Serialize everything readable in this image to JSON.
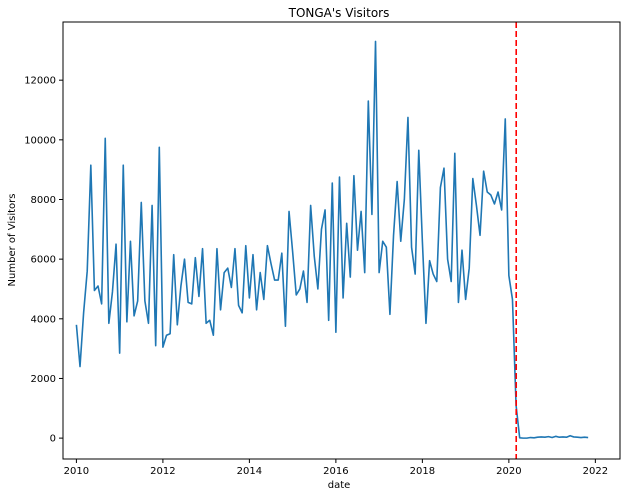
{
  "chart_data": {
    "type": "line",
    "title": "TONGA's Visitors",
    "xlabel": "date",
    "ylabel": "Number of Visitors",
    "xlim": [
      2009.69,
      2022.57
    ],
    "ylim": [
      -700,
      13950
    ],
    "x_ticks": [
      2010,
      2012,
      2014,
      2016,
      2018,
      2020,
      2022
    ],
    "x_tick_labels": [
      "2010",
      "2012",
      "2014",
      "2016",
      "2018",
      "2020",
      "2022"
    ],
    "y_ticks": [
      0,
      2000,
      4000,
      6000,
      8000,
      10000,
      12000
    ],
    "y_tick_labels": [
      "0",
      "2000",
      "4000",
      "6000",
      "8000",
      "10000",
      "12000"
    ],
    "grid": false,
    "annotations": [
      {
        "type": "vline",
        "x": 2020.17,
        "style": "dashed",
        "color": "#ff0000"
      }
    ],
    "series": [
      {
        "color": "#1f77b4",
        "start_year": 2010,
        "frequency": "monthly",
        "values": [
          3800,
          2400,
          4200,
          5600,
          9150,
          4950,
          5100,
          4500,
          10050,
          3850,
          4900,
          6500,
          2850,
          9150,
          3900,
          6600,
          4100,
          4600,
          7900,
          4600,
          3850,
          7800,
          3100,
          9750,
          3050,
          3450,
          3500,
          6150,
          3800,
          5100,
          6000,
          4550,
          4500,
          6050,
          4750,
          6350,
          3850,
          3950,
          3450,
          6350,
          4300,
          5550,
          5700,
          5050,
          6350,
          4450,
          4200,
          6450,
          4700,
          6150,
          4300,
          5550,
          4650,
          6450,
          5850,
          5300,
          5300,
          6200,
          3750,
          7600,
          6250,
          4800,
          5000,
          5600,
          4550,
          7800,
          6100,
          5000,
          7000,
          7650,
          3950,
          8550,
          3550,
          8750,
          4700,
          7200,
          5400,
          8800,
          6300,
          7600,
          5550,
          11300,
          7500,
          13300,
          5550,
          6600,
          6400,
          4150,
          6800,
          8600,
          6600,
          8000,
          10750,
          6400,
          5500,
          9650,
          6600,
          3850,
          5950,
          5500,
          5250,
          8400,
          9050,
          6000,
          5250,
          9550,
          4550,
          6300,
          4650,
          5700,
          8700,
          7800,
          6800,
          8950,
          8250,
          8150,
          7850,
          8250,
          7650,
          10700,
          5450,
          4650,
          1100,
          10,
          0,
          0,
          20,
          10,
          30,
          40,
          30,
          50,
          20,
          60,
          30,
          40,
          30,
          80,
          40,
          30,
          20,
          30,
          20
        ]
      }
    ]
  }
}
